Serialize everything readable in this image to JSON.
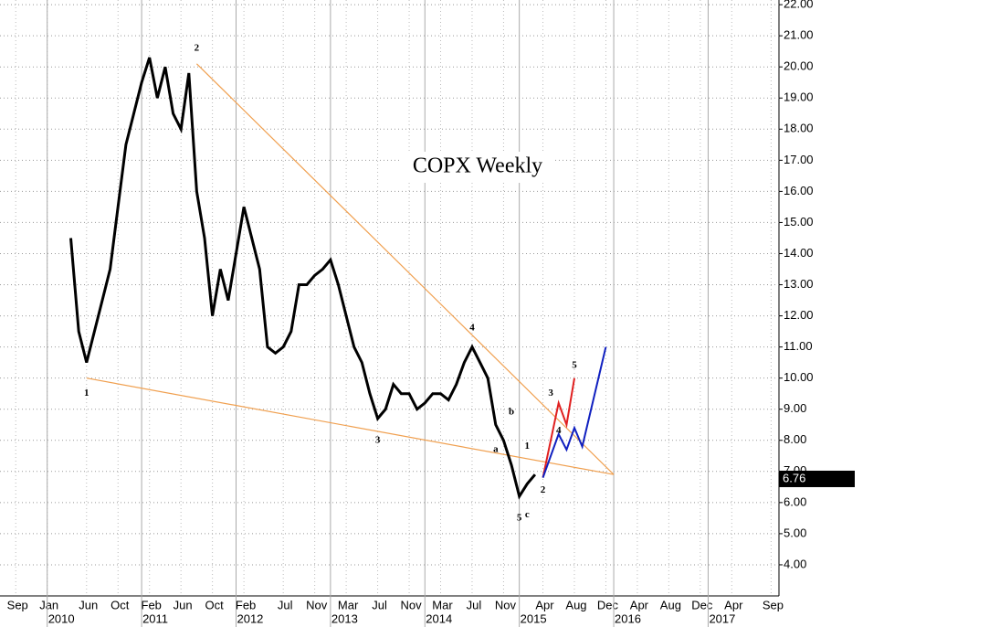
{
  "chart_data": {
    "type": "line",
    "title": "COPX Weekly",
    "x": [
      "2010-04",
      "2010-05",
      "2010-06",
      "2010-07",
      "2010-08",
      "2010-09",
      "2010-10",
      "2010-11",
      "2010-12",
      "2011-01",
      "2011-02",
      "2011-03",
      "2011-04",
      "2011-05",
      "2011-06",
      "2011-07",
      "2011-08",
      "2011-09",
      "2011-10",
      "2011-11",
      "2011-12",
      "2012-01",
      "2012-02",
      "2012-03",
      "2012-04",
      "2012-05",
      "2012-06",
      "2012-07",
      "2012-08",
      "2012-09",
      "2012-10",
      "2012-11",
      "2012-12",
      "2013-01",
      "2013-02",
      "2013-03",
      "2013-04",
      "2013-05",
      "2013-06",
      "2013-07",
      "2013-08",
      "2013-09",
      "2013-10",
      "2013-11",
      "2013-12",
      "2014-01",
      "2014-02",
      "2014-03",
      "2014-04",
      "2014-05",
      "2014-06",
      "2014-07",
      "2014-08",
      "2014-09",
      "2014-10",
      "2014-11",
      "2014-12",
      "2015-01",
      "2015-02",
      "2015-03"
    ],
    "values": [
      14.5,
      11.5,
      10.5,
      11.5,
      12.5,
      13.5,
      15.5,
      17.5,
      18.5,
      19.5,
      20.3,
      19.0,
      20.0,
      18.5,
      18.0,
      19.8,
      16.0,
      14.5,
      12.0,
      13.5,
      12.5,
      14.0,
      15.5,
      14.5,
      13.5,
      11.0,
      10.8,
      11.0,
      11.5,
      13.0,
      13.0,
      13.3,
      13.5,
      13.8,
      13.0,
      12.0,
      11.0,
      10.5,
      9.5,
      8.7,
      9.0,
      9.8,
      9.5,
      9.5,
      9.0,
      9.2,
      9.5,
      9.5,
      9.3,
      9.8,
      10.5,
      11.0,
      10.5,
      10.0,
      8.5,
      8.0,
      7.2,
      6.2,
      6.6,
      6.9
    ],
    "color": "#000000",
    "last_price": {
      "value": 6.76,
      "label": "6.76"
    },
    "lines": [
      {
        "color": "#f0a050",
        "x": [
          "2010-06",
          "2016-01"
        ],
        "values": [
          10.0,
          6.9
        ]
      },
      {
        "color": "#f0a050",
        "x": [
          "2011-08",
          "2016-01"
        ],
        "values": [
          20.1,
          6.9
        ]
      },
      {
        "color": "#e02020",
        "x": [
          "2015-04",
          "2015-06",
          "2015-07",
          "2015-08"
        ],
        "values": [
          6.8,
          9.2,
          8.5,
          10.0
        ]
      },
      {
        "color": "#1020c0",
        "x": [
          "2015-04",
          "2015-06",
          "2015-07",
          "2015-08",
          "2015-09",
          "2015-12"
        ],
        "values": [
          6.8,
          8.2,
          7.7,
          8.4,
          7.8,
          11.0
        ]
      }
    ],
    "annotations": [
      {
        "text": "1",
        "color": "#1020a0",
        "x": "2010-06",
        "y": 9.5
      },
      {
        "text": "2",
        "color": "#1020a0",
        "x": "2011-08",
        "y": 20.6
      },
      {
        "text": "3",
        "color": "#1020a0",
        "x": "2013-07",
        "y": 8.0
      },
      {
        "text": "4",
        "color": "#1020a0",
        "x": "2014-07",
        "y": 11.6
      },
      {
        "text": "5",
        "color": "#1020a0",
        "x": "2015-01",
        "y": 5.5
      },
      {
        "text": "c",
        "color": "#e02020",
        "x": "2015-02",
        "y": 5.6
      },
      {
        "text": "a",
        "color": "#e02020",
        "x": "2014-10",
        "y": 7.7
      },
      {
        "text": "b",
        "color": "#e02020",
        "x": "2014-12",
        "y": 8.9
      },
      {
        "text": "1",
        "color": "#d020d0",
        "x": "2015-02",
        "y": 7.8
      },
      {
        "text": "2",
        "color": "#d020d0",
        "x": "2015-04",
        "y": 6.4
      },
      {
        "text": "3",
        "color": "#d020d0",
        "x": "2015-05",
        "y": 9.5
      },
      {
        "text": "4",
        "color": "#d020d0",
        "x": "2015-06",
        "y": 8.3
      },
      {
        "text": "5",
        "color": "#d020d0",
        "x": "2015-08",
        "y": 10.4
      }
    ],
    "xlim": [
      "2009-07",
      "2017-10"
    ],
    "ylim": [
      3,
      22.15
    ],
    "yticks": [
      {
        "value": 4,
        "label": "4.00"
      },
      {
        "value": 5,
        "label": "5.00"
      },
      {
        "value": 6,
        "label": "6.00"
      },
      {
        "value": 7,
        "label": "7.00"
      },
      {
        "value": 8,
        "label": "8.00"
      },
      {
        "value": 9,
        "label": "9.00"
      },
      {
        "value": 10,
        "label": "10.00"
      },
      {
        "value": 11,
        "label": "11.00"
      },
      {
        "value": 12,
        "label": "12.00"
      },
      {
        "value": 13,
        "label": "13.00"
      },
      {
        "value": 14,
        "label": "14.00"
      },
      {
        "value": 15,
        "label": "15.00"
      },
      {
        "value": 16,
        "label": "16.00"
      },
      {
        "value": 17,
        "label": "17.00"
      },
      {
        "value": 18,
        "label": "18.00"
      },
      {
        "value": 19,
        "label": "19.00"
      },
      {
        "value": 20,
        "label": "20.00"
      },
      {
        "value": 21,
        "label": "21.00"
      },
      {
        "value": 22,
        "label": "22.00"
      }
    ],
    "xticks": [
      {
        "value": "2009-09",
        "label": "Sep"
      },
      {
        "value": "2010-01",
        "label": "Jan"
      },
      {
        "value": "2010-06",
        "label": "Jun"
      },
      {
        "value": "2010-10",
        "label": "Oct"
      },
      {
        "value": "2011-02",
        "label": "Feb"
      },
      {
        "value": "2011-06",
        "label": "Jun"
      },
      {
        "value": "2011-10",
        "label": "Oct"
      },
      {
        "value": "2012-02",
        "label": "Feb"
      },
      {
        "value": "2012-07",
        "label": "Jul"
      },
      {
        "value": "2012-11",
        "label": "Nov"
      },
      {
        "value": "2013-03",
        "label": "Mar"
      },
      {
        "value": "2013-07",
        "label": "Jul"
      },
      {
        "value": "2013-11",
        "label": "Nov"
      },
      {
        "value": "2014-03",
        "label": "Mar"
      },
      {
        "value": "2014-07",
        "label": "Jul"
      },
      {
        "value": "2014-11",
        "label": "Nov"
      },
      {
        "value": "2015-04",
        "label": "Apr"
      },
      {
        "value": "2015-08",
        "label": "Aug"
      },
      {
        "value": "2015-12",
        "label": "Dec"
      },
      {
        "value": "2016-04",
        "label": "Apr"
      },
      {
        "value": "2016-08",
        "label": "Aug"
      },
      {
        "value": "2016-12",
        "label": "Dec"
      },
      {
        "value": "2017-04",
        "label": "Apr"
      },
      {
        "value": "2017-09",
        "label": "Sep"
      }
    ],
    "year_ticks": [
      {
        "value": "2010-01",
        "label": "2010"
      },
      {
        "value": "2011-01",
        "label": "2011"
      },
      {
        "value": "2012-01",
        "label": "2012"
      },
      {
        "value": "2013-01",
        "label": "2013"
      },
      {
        "value": "2014-01",
        "label": "2014"
      },
      {
        "value": "2015-01",
        "label": "2015"
      },
      {
        "value": "2016-01",
        "label": "2016"
      },
      {
        "value": "2017-01",
        "label": "2017"
      }
    ],
    "grid": true
  }
}
